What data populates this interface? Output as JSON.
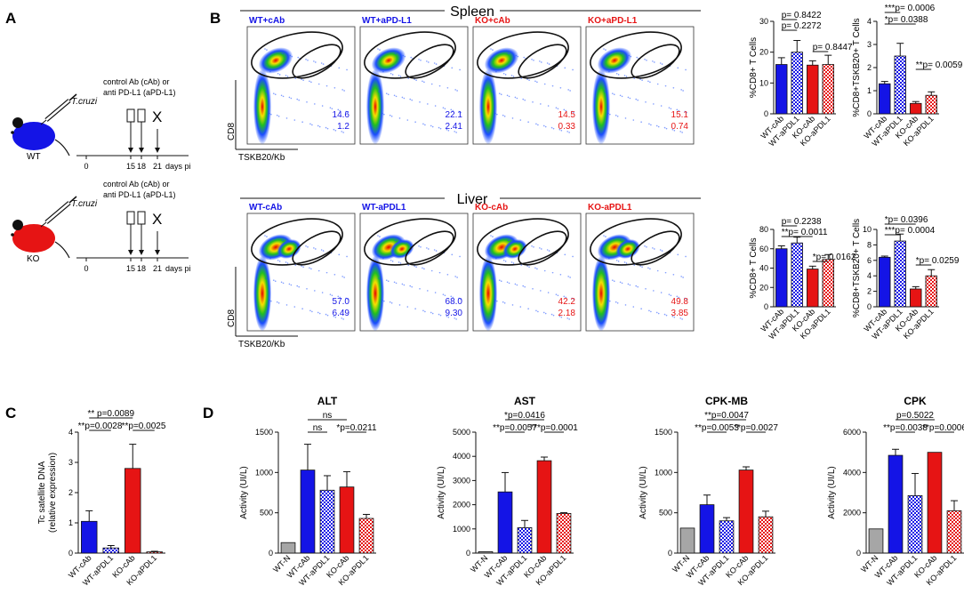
{
  "panels": {
    "A": "A",
    "B": "B",
    "C": "C",
    "D": "D"
  },
  "colors": {
    "wt": "#1414e6",
    "ko": "#e61414",
    "grey": "#a6a6a6",
    "wt_light": "#9aa0f0",
    "ko_light": "#f5a0a0"
  },
  "panelA": {
    "rows": [
      {
        "mouse_label": "WT",
        "mouse_color": "#1414e6"
      },
      {
        "mouse_label": "KO",
        "mouse_color": "#e61414"
      }
    ],
    "pathogen": "T.cruzi",
    "treatment_line1": "control Ab (cAb) or",
    "treatment_line2": "anti PD-L1 (aPD-L1)",
    "days": [
      "0",
      "15",
      "18",
      "21"
    ],
    "harvest_mark": "X",
    "axis_label": "days pi"
  },
  "panelB": {
    "spleen": {
      "title": "Spleen",
      "plots": [
        {
          "label": "WT+cAb",
          "top": "14.6",
          "bottom": "1.2",
          "color": "#1414e6"
        },
        {
          "label": "WT+aPD-L1",
          "top": "22.1",
          "bottom": "2.41",
          "color": "#1414e6"
        },
        {
          "label": "KO+cAb",
          "top": "14.5",
          "bottom": "0.33",
          "color": "#e61414"
        },
        {
          "label": "KO+aPD-L1",
          "top": "15.1",
          "bottom": "0.74",
          "color": "#e61414"
        }
      ],
      "xlabel": "TSKB20/Kb",
      "ylabel": "CD8"
    },
    "liver": {
      "title": "Liver",
      "plots": [
        {
          "label": "WT-cAb",
          "top": "57.0",
          "bottom": "6.49",
          "color": "#1414e6"
        },
        {
          "label": "WT-aPDL1",
          "top": "68.0",
          "bottom": "9.30",
          "color": "#1414e6"
        },
        {
          "label": "KO-cAb",
          "top": "42.2",
          "bottom": "2.18",
          "color": "#e61414"
        },
        {
          "label": "KO-aPDL1",
          "top": "49.8",
          "bottom": "3.85",
          "color": "#e61414"
        }
      ],
      "xlabel": "TSKB20/Kb",
      "ylabel": "CD8"
    }
  },
  "chart_data": [
    {
      "id": "B_spleen_cd8",
      "type": "bar",
      "categories": [
        "WT-cAb",
        "WT-aPDL1",
        "KO-cAb",
        "KO-aPDL1"
      ],
      "values": [
        16,
        20,
        15.8,
        16
      ],
      "errors": [
        2.2,
        3.8,
        1.4,
        3
      ],
      "ylabel": "%CD8+ T Cells",
      "ylim": [
        0,
        30
      ],
      "yticks": [
        0,
        10,
        20,
        30
      ],
      "annotations": [
        {
          "text": "p= 0.8422"
        },
        {
          "text": "p= 0.2272"
        },
        {
          "text": "p= 0.8447"
        }
      ]
    },
    {
      "id": "B_spleen_tskb",
      "type": "bar",
      "categories": [
        "WT-cAb",
        "WT-aPDL1",
        "KO-cAb",
        "KO-aPDL1"
      ],
      "values": [
        1.3,
        2.5,
        0.45,
        0.8
      ],
      "errors": [
        0.1,
        0.55,
        0.08,
        0.15
      ],
      "ylabel": "%CD8+TSKB20+ T Cells",
      "ylim": [
        0,
        4
      ],
      "yticks": [
        0,
        1,
        2,
        3,
        4
      ],
      "annotations": [
        {
          "text": "***p= 0.0006"
        },
        {
          "text": "*p= 0.0388"
        },
        {
          "text": "**p= 0.0059"
        }
      ]
    },
    {
      "id": "B_liver_cd8",
      "type": "bar",
      "categories": [
        "WT-cAb",
        "WT-aPDL1",
        "KO-cAb",
        "KO-aPDL1"
      ],
      "values": [
        60,
        66,
        39,
        49
      ],
      "errors": [
        3,
        6,
        3,
        5
      ],
      "ylabel": "%CD8+ T Cells",
      "ylim": [
        0,
        80
      ],
      "yticks": [
        0,
        20,
        40,
        60,
        80
      ],
      "annotations": [
        {
          "text": "p= 0.2238"
        },
        {
          "text": "**p= 0.0011"
        },
        {
          "text": "*p= 0.0162"
        }
      ]
    },
    {
      "id": "B_liver_tskb",
      "type": "bar",
      "categories": [
        "WT-cAb",
        "WT-aPDL1",
        "KO-cAb",
        "KO-aPDL1"
      ],
      "values": [
        6.4,
        8.5,
        2.3,
        4
      ],
      "errors": [
        0.15,
        0.9,
        0.3,
        0.8
      ],
      "ylabel": "%CD8+TSKB20+ T Cells",
      "ylim": [
        0,
        10
      ],
      "yticks": [
        0,
        2,
        4,
        6,
        8,
        10
      ],
      "annotations": [
        {
          "text": "*p= 0.0396"
        },
        {
          "text": "***p= 0.0004"
        },
        {
          "text": "*p= 0.0259"
        }
      ]
    },
    {
      "id": "C",
      "type": "bar",
      "categories": [
        "WT-cAb",
        "WT-aPDL1",
        "KO-cAb",
        "KO-aPDL1"
      ],
      "values": [
        1.05,
        0.17,
        2.8,
        0.04
      ],
      "errors": [
        0.35,
        0.08,
        0.8,
        0.02
      ],
      "ylabel": "Tc satellite DNA (relative expression)",
      "ylim": [
        0,
        4
      ],
      "yticks": [
        0,
        1,
        2,
        3,
        4
      ],
      "annotations": [
        {
          "text": "** p=0.0089"
        },
        {
          "text": "**p=0.0028"
        },
        {
          "text": "**p=0.0025"
        }
      ]
    },
    {
      "id": "D_ALT",
      "type": "bar",
      "title": "ALT",
      "categories": [
        "WT-N",
        "WT-cAb",
        "WT-aPDL1",
        "KO-cAb",
        "KO-aPDL1"
      ],
      "values": [
        130,
        1030,
        780,
        820,
        430
      ],
      "errors": [
        0,
        320,
        180,
        190,
        50
      ],
      "ylabel": "Activity (UI/L)",
      "ylim": [
        0,
        1500
      ],
      "yticks": [
        0,
        500,
        1000,
        1500
      ],
      "annotations": [
        {
          "text": "ns"
        },
        {
          "text": "ns"
        },
        {
          "text": "*p=0.0211"
        }
      ]
    },
    {
      "id": "D_AST",
      "type": "bar",
      "title": "AST",
      "categories": [
        "WT-N",
        "WT-cAb",
        "WT-aPDL1",
        "KO-cAb",
        "KO-aPDL1"
      ],
      "values": [
        60,
        2530,
        1050,
        3820,
        1640
      ],
      "errors": [
        0,
        800,
        300,
        150,
        30
      ],
      "ylabel": "Activity (UI/L)",
      "ylim": [
        0,
        5000
      ],
      "yticks": [
        0,
        1000,
        2000,
        3000,
        4000,
        5000
      ],
      "annotations": [
        {
          "text": "*p=0.0416"
        },
        {
          "text": "**p=0.0057"
        },
        {
          "text": "***p=0.0001"
        }
      ]
    },
    {
      "id": "D_CPKMB",
      "type": "bar",
      "title": "CPK-MB",
      "categories": [
        "WT-N",
        "WT-cAb",
        "WT-aPDL1",
        "KO-cAb",
        "KO-aPDL1"
      ],
      "values": [
        310,
        600,
        400,
        1030,
        450
      ],
      "errors": [
        0,
        120,
        40,
        40,
        70
      ],
      "ylabel": "Activity (UI/L)",
      "ylim": [
        0,
        1500
      ],
      "yticks": [
        0,
        500,
        1000,
        1500
      ],
      "annotations": [
        {
          "text": "**p=0.0047"
        },
        {
          "text": "**p=0.0053"
        },
        {
          "text": "**p=0.0027"
        }
      ]
    },
    {
      "id": "D_CPK",
      "type": "bar",
      "title": "CPK",
      "categories": [
        "WT-N",
        "WT-cAb",
        "WT-aPDL1",
        "KO-cAb",
        "KO-aPDL1"
      ],
      "values": [
        1200,
        4850,
        2850,
        5000,
        2100
      ],
      "errors": [
        0,
        300,
        1100,
        0,
        500
      ],
      "ylabel": "Activity (UI/L)",
      "ylim": [
        0,
        6000
      ],
      "yticks": [
        0,
        2000,
        4000,
        6000
      ],
      "annotations": [
        {
          "text": "p=0.5022"
        },
        {
          "text": "**p=0.0038"
        },
        {
          "text": "**p=0.0006"
        }
      ]
    }
  ]
}
